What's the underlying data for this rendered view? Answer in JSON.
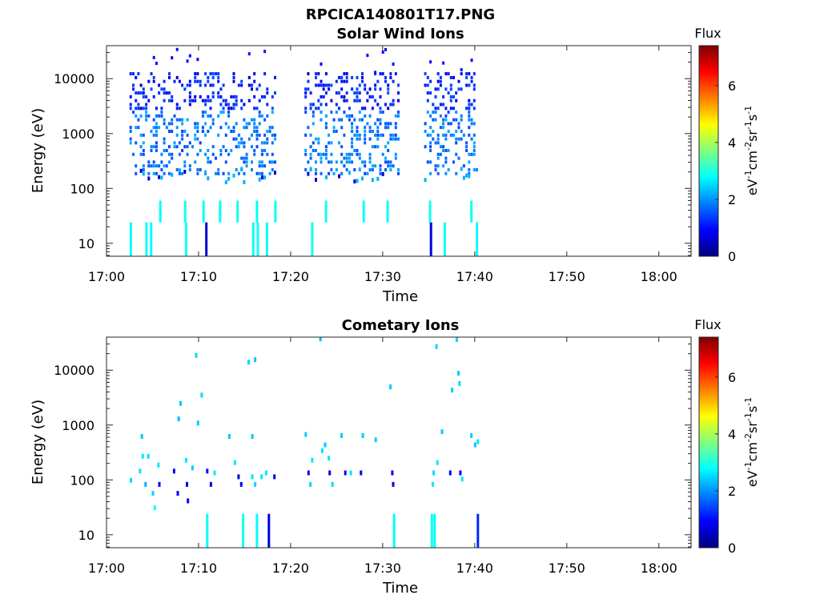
{
  "figure": {
    "title": "RPCICA140801T17.PNG"
  },
  "colorbar": {
    "label": "Flux",
    "unit_parts": [
      "eV",
      "-1",
      "cm",
      "-2",
      "sr",
      "-1",
      "s",
      "-1"
    ],
    "ticks": [
      "0",
      "2",
      "4",
      "6"
    ],
    "range": [
      0,
      7.4
    ],
    "colormap": [
      "#00007f",
      "#0000ff",
      "#007fff",
      "#00ffff",
      "#7fff7f",
      "#ffff00",
      "#ff7f00",
      "#ff0000",
      "#7f0000"
    ]
  },
  "chart_data": [
    {
      "type": "heatmap",
      "title": "Solar Wind Ions",
      "xlabel": "Time",
      "ylabel": "Energy (eV)",
      "x_ticks": [
        "17:00",
        "17:10",
        "17:20",
        "17:30",
        "17:40",
        "17:50",
        "18:00"
      ],
      "x_range_minutes": [
        0,
        63.5
      ],
      "y_ticks": [
        "10",
        "100",
        "1000",
        "10000"
      ],
      "y_scale": "log",
      "y_range": [
        5.8,
        40000
      ],
      "data_windows_minutes": [
        [
          2.5,
          18.5
        ],
        [
          21.5,
          32.0
        ],
        [
          34.5,
          40.5
        ]
      ],
      "grid": false,
      "seed": 7,
      "stripes": [
        {
          "t": 2.6,
          "e": [
            5.8,
            24
          ],
          "flux": 2.8
        },
        {
          "t": 4.3,
          "e": [
            5.8,
            24
          ],
          "flux": 2.9
        },
        {
          "t": 4.8,
          "e": [
            5.8,
            24
          ],
          "flux": 2.8
        },
        {
          "t": 8.6,
          "e": [
            5.8,
            24
          ],
          "flux": 2.9
        },
        {
          "t": 10.8,
          "e": [
            5.8,
            24
          ],
          "flux": 0.6
        },
        {
          "t": 15.9,
          "e": [
            5.8,
            24
          ],
          "flux": 2.8
        },
        {
          "t": 16.4,
          "e": [
            5.8,
            24
          ],
          "flux": 2.9
        },
        {
          "t": 17.4,
          "e": [
            5.8,
            24
          ],
          "flux": 2.8
        },
        {
          "t": 22.3,
          "e": [
            5.8,
            24
          ],
          "flux": 2.9
        },
        {
          "t": 35.2,
          "e": [
            5.8,
            24
          ],
          "flux": 0.7
        },
        {
          "t": 36.7,
          "e": [
            5.8,
            24
          ],
          "flux": 2.9
        },
        {
          "t": 40.2,
          "e": [
            5.8,
            24
          ],
          "flux": 2.8
        },
        {
          "t": 5.8,
          "e": [
            24,
            60
          ],
          "flux": 2.8
        },
        {
          "t": 8.5,
          "e": [
            24,
            60
          ],
          "flux": 2.9
        },
        {
          "t": 10.5,
          "e": [
            24,
            60
          ],
          "flux": 2.8
        },
        {
          "t": 12.3,
          "e": [
            24,
            60
          ],
          "flux": 2.8
        },
        {
          "t": 14.2,
          "e": [
            24,
            60
          ],
          "flux": 2.9
        },
        {
          "t": 16.3,
          "e": [
            24,
            60
          ],
          "flux": 2.8
        },
        {
          "t": 18.3,
          "e": [
            24,
            60
          ],
          "flux": 2.8
        },
        {
          "t": 23.8,
          "e": [
            24,
            60
          ],
          "flux": 2.9
        },
        {
          "t": 27.9,
          "e": [
            24,
            60
          ],
          "flux": 2.8
        },
        {
          "t": 30.5,
          "e": [
            24,
            60
          ],
          "flux": 2.8
        },
        {
          "t": 35.1,
          "e": [
            24,
            60
          ],
          "flux": 2.9
        },
        {
          "t": 39.6,
          "e": [
            24,
            60
          ],
          "flux": 2.8
        }
      ]
    },
    {
      "type": "heatmap",
      "title": "Cometary Ions",
      "xlabel": "Time",
      "ylabel": "Energy (eV)",
      "x_ticks": [
        "17:00",
        "17:10",
        "17:20",
        "17:30",
        "17:40",
        "17:50",
        "18:00"
      ],
      "x_range_minutes": [
        0,
        63.5
      ],
      "y_ticks": [
        "10",
        "100",
        "1000",
        "10000"
      ],
      "y_scale": "log",
      "y_range": [
        5.8,
        40000
      ],
      "grid": false,
      "stripes": [
        {
          "t": 10.9,
          "e": [
            5.8,
            24
          ],
          "flux": 2.8
        },
        {
          "t": 14.8,
          "e": [
            5.8,
            24
          ],
          "flux": 2.9
        },
        {
          "t": 16.3,
          "e": [
            5.8,
            24
          ],
          "flux": 2.8
        },
        {
          "t": 17.6,
          "e": [
            5.8,
            24
          ],
          "flux": 0.7
        },
        {
          "t": 31.2,
          "e": [
            5.8,
            24
          ],
          "flux": 2.8
        },
        {
          "t": 35.3,
          "e": [
            5.8,
            24
          ],
          "flux": 2.9
        },
        {
          "t": 35.6,
          "e": [
            5.8,
            24
          ],
          "flux": 2.8
        },
        {
          "t": 40.3,
          "e": [
            5.8,
            24
          ],
          "flux": 1.2
        }
      ],
      "points": [
        {
          "t": 2.6,
          "e": 95,
          "flux": 2.5
        },
        {
          "t": 3.6,
          "e": 140,
          "flux": 2.6
        },
        {
          "t": 3.9,
          "e": 260,
          "flux": 2.6
        },
        {
          "t": 3.8,
          "e": 600,
          "flux": 2.4
        },
        {
          "t": 4.5,
          "e": 260,
          "flux": 2.6
        },
        {
          "t": 4.2,
          "e": 80,
          "flux": 2.2
        },
        {
          "t": 5.0,
          "e": 55,
          "flux": 2.5
        },
        {
          "t": 5.2,
          "e": 30,
          "flux": 2.8
        },
        {
          "t": 5.6,
          "e": 180,
          "flux": 2.6
        },
        {
          "t": 5.7,
          "e": 80,
          "flux": 0.8
        },
        {
          "t": 7.3,
          "e": 140,
          "flux": 0.9
        },
        {
          "t": 7.7,
          "e": 55,
          "flux": 0.8
        },
        {
          "t": 7.8,
          "e": 1250,
          "flux": 2.3
        },
        {
          "t": 8.0,
          "e": 2400,
          "flux": 2.4
        },
        {
          "t": 8.6,
          "e": 220,
          "flux": 2.6
        },
        {
          "t": 8.7,
          "e": 80,
          "flux": 0.7
        },
        {
          "t": 8.8,
          "e": 40,
          "flux": 0.9
        },
        {
          "t": 9.3,
          "e": 160,
          "flux": 2.4
        },
        {
          "t": 9.7,
          "e": 18000,
          "flux": 2.5
        },
        {
          "t": 9.9,
          "e": 1050,
          "flux": 2.4
        },
        {
          "t": 10.3,
          "e": 3400,
          "flux": 2.5
        },
        {
          "t": 10.9,
          "e": 140,
          "flux": 1.0
        },
        {
          "t": 11.3,
          "e": 80,
          "flux": 0.8
        },
        {
          "t": 11.7,
          "e": 130,
          "flux": 2.6
        },
        {
          "t": 13.3,
          "e": 600,
          "flux": 2.4
        },
        {
          "t": 13.9,
          "e": 200,
          "flux": 2.6
        },
        {
          "t": 14.3,
          "e": 110,
          "flux": 0.7
        },
        {
          "t": 14.6,
          "e": 80,
          "flux": 0.9
        },
        {
          "t": 15.4,
          "e": 13500,
          "flux": 2.5
        },
        {
          "t": 16.1,
          "e": 15000,
          "flux": 2.4
        },
        {
          "t": 15.8,
          "e": 600,
          "flux": 2.4
        },
        {
          "t": 15.8,
          "e": 110,
          "flux": 2.6
        },
        {
          "t": 16.1,
          "e": 80,
          "flux": 2.5
        },
        {
          "t": 16.8,
          "e": 110,
          "flux": 2.6
        },
        {
          "t": 17.3,
          "e": 130,
          "flux": 2.6
        },
        {
          "t": 18.2,
          "e": 110,
          "flux": 0.8
        },
        {
          "t": 21.6,
          "e": 650,
          "flux": 2.4
        },
        {
          "t": 21.9,
          "e": 130,
          "flux": 0.8
        },
        {
          "t": 22.3,
          "e": 220,
          "flux": 2.6
        },
        {
          "t": 22.1,
          "e": 80,
          "flux": 2.5
        },
        {
          "t": 23.2,
          "e": 36000,
          "flux": 2.3
        },
        {
          "t": 23.4,
          "e": 330,
          "flux": 2.6
        },
        {
          "t": 23.7,
          "e": 420,
          "flux": 2.4
        },
        {
          "t": 24.1,
          "e": 240,
          "flux": 2.6
        },
        {
          "t": 24.2,
          "e": 130,
          "flux": 0.7
        },
        {
          "t": 24.5,
          "e": 80,
          "flux": 2.5
        },
        {
          "t": 25.5,
          "e": 620,
          "flux": 2.4
        },
        {
          "t": 25.9,
          "e": 130,
          "flux": 0.8
        },
        {
          "t": 26.5,
          "e": 130,
          "flux": 2.6
        },
        {
          "t": 27.6,
          "e": 130,
          "flux": 0.8
        },
        {
          "t": 27.8,
          "e": 620,
          "flux": 2.4
        },
        {
          "t": 29.2,
          "e": 520,
          "flux": 2.4
        },
        {
          "t": 30.8,
          "e": 4800,
          "flux": 2.4
        },
        {
          "t": 31.0,
          "e": 130,
          "flux": 0.8
        },
        {
          "t": 31.1,
          "e": 80,
          "flux": 0.7
        },
        {
          "t": 35.4,
          "e": 80,
          "flux": 2.6
        },
        {
          "t": 35.5,
          "e": 130,
          "flux": 2.5
        },
        {
          "t": 35.8,
          "e": 26000,
          "flux": 2.5
        },
        {
          "t": 35.9,
          "e": 200,
          "flux": 2.6
        },
        {
          "t": 36.4,
          "e": 730,
          "flux": 2.4
        },
        {
          "t": 37.3,
          "e": 130,
          "flux": 0.8
        },
        {
          "t": 37.5,
          "e": 4200,
          "flux": 2.4
        },
        {
          "t": 38.0,
          "e": 35000,
          "flux": 2.5
        },
        {
          "t": 38.2,
          "e": 8500,
          "flux": 2.4
        },
        {
          "t": 38.3,
          "e": 5500,
          "flux": 2.5
        },
        {
          "t": 38.4,
          "e": 130,
          "flux": 0.8
        },
        {
          "t": 38.6,
          "e": 100,
          "flux": 2.6
        },
        {
          "t": 39.6,
          "e": 620,
          "flux": 2.4
        },
        {
          "t": 40.0,
          "e": 420,
          "flux": 2.4
        },
        {
          "t": 40.3,
          "e": 480,
          "flux": 2.6
        }
      ]
    }
  ]
}
